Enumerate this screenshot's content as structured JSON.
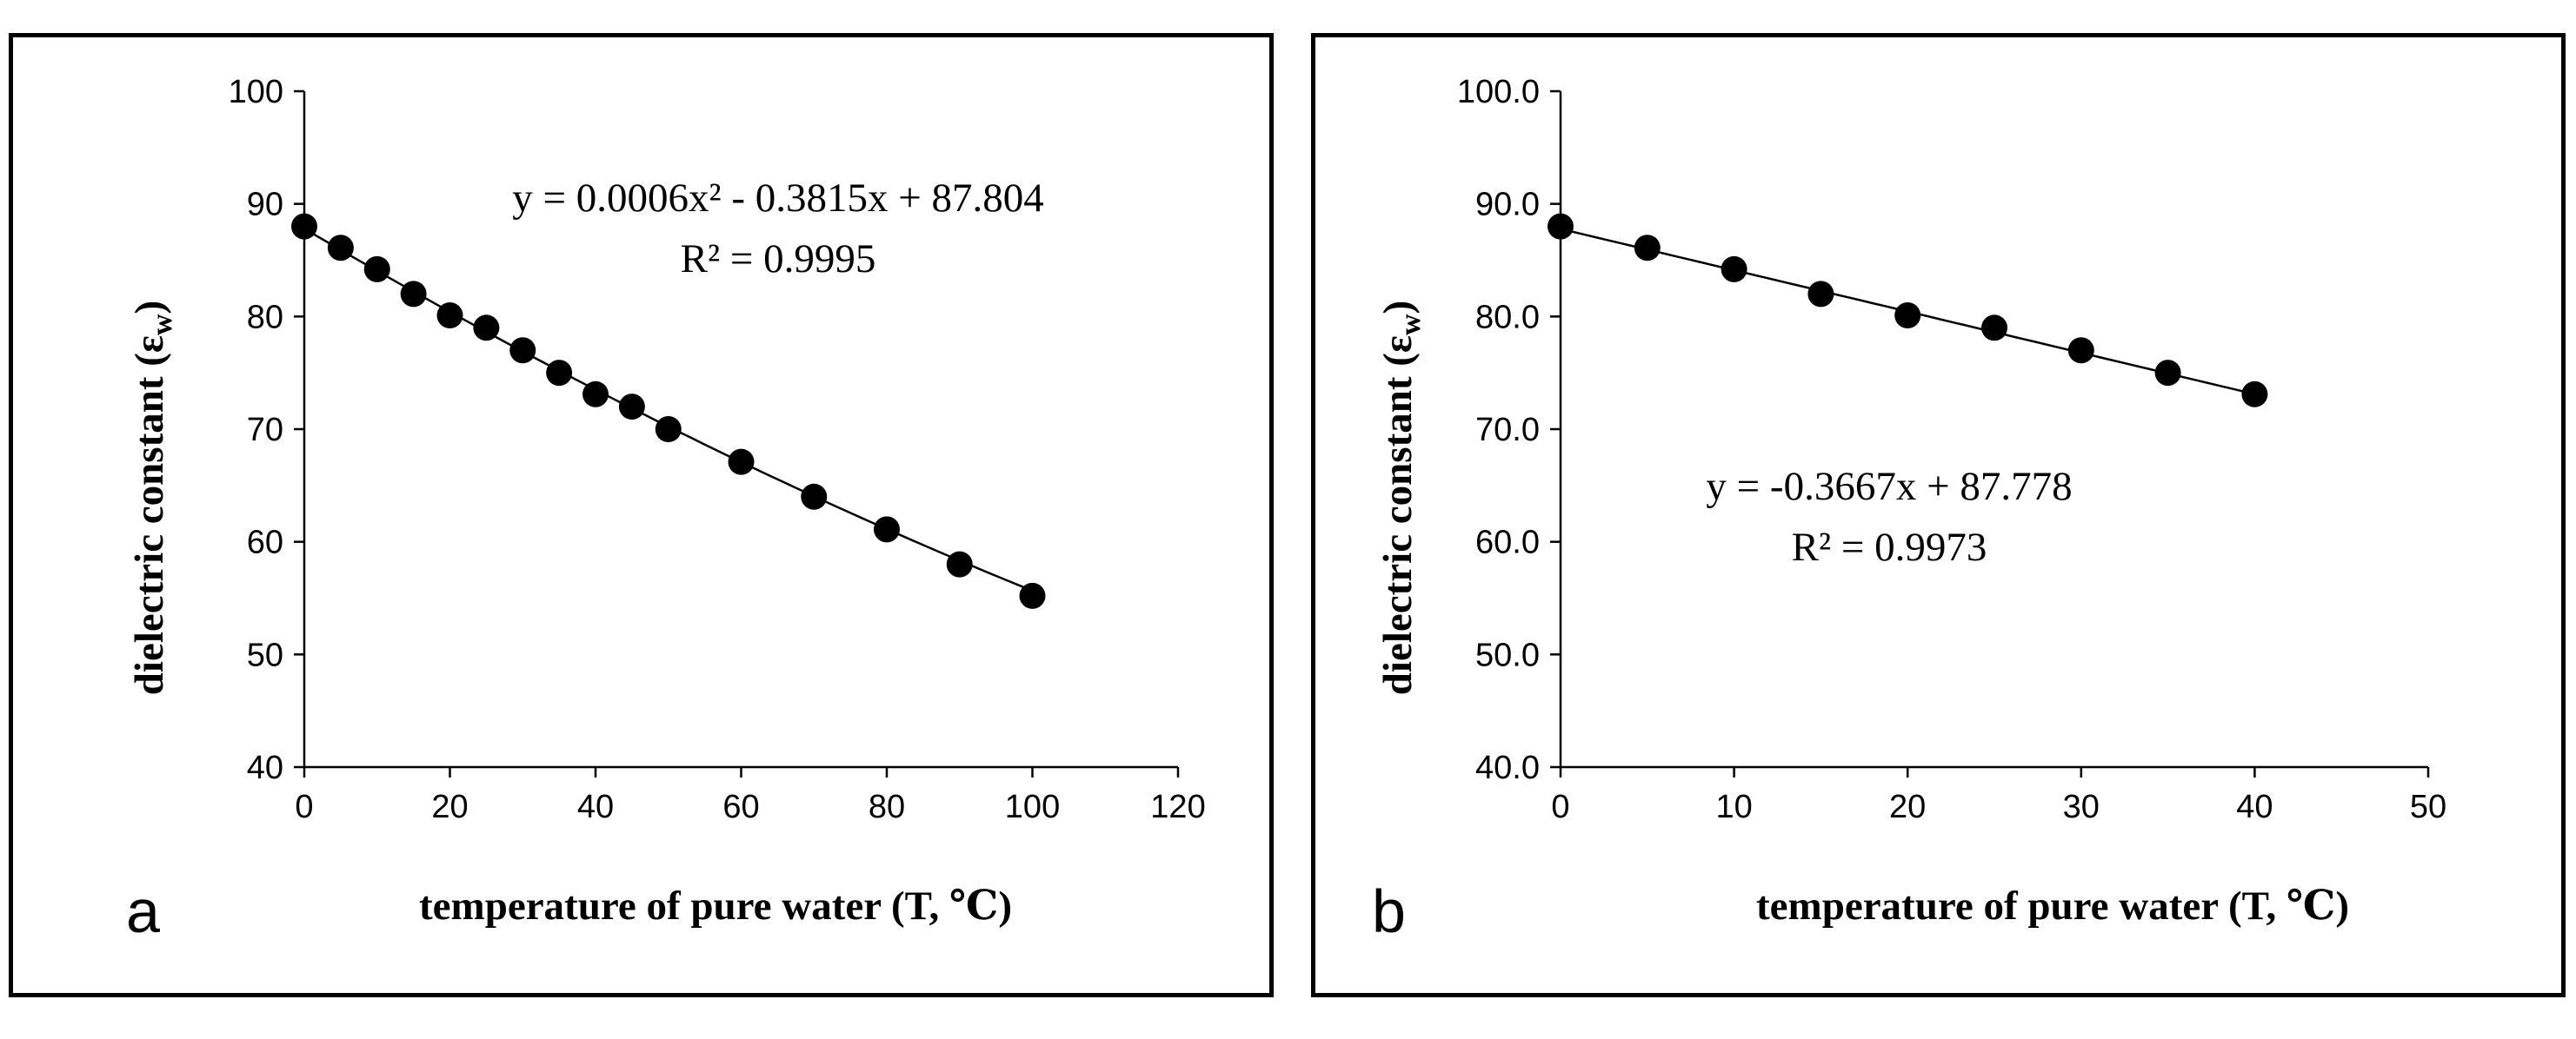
{
  "chart_data": [
    {
      "type": "scatter",
      "panel_label": "a",
      "xlabel": "temperature of pure water (T, ℃)",
      "ylabel_main": "dielectric constant (ε",
      "ylabel_sub": "w",
      "ylabel_close": ")",
      "xlim": [
        0,
        120
      ],
      "ylim": [
        40,
        100
      ],
      "xticks": [
        0,
        20,
        40,
        60,
        80,
        100,
        120
      ],
      "yticks": [
        40,
        50,
        60,
        70,
        80,
        90,
        100
      ],
      "xtick_labels": [
        "0",
        "20",
        "40",
        "60",
        "80",
        "100",
        "120"
      ],
      "ytick_labels": [
        "40",
        "50",
        "60",
        "70",
        "80",
        "90",
        "100"
      ],
      "series": [
        {
          "name": "pure water",
          "x": [
            0,
            5,
            10,
            15,
            20,
            25,
            30,
            35,
            40,
            45,
            50,
            60,
            70,
            80,
            90,
            100
          ],
          "y": [
            88.0,
            86.1,
            84.2,
            82.0,
            80.1,
            79.0,
            77.0,
            75.0,
            73.1,
            72.0,
            70.0,
            67.1,
            64.0,
            61.1,
            58.0,
            55.2
          ]
        }
      ],
      "trendline": {
        "kind": "polynomial",
        "a": 0.0006,
        "b": -0.3815,
        "c": 87.804,
        "x_range": [
          0,
          100
        ]
      },
      "equation_text": "y = 0.0006x² - 0.3815x + 87.804",
      "r2_text": "R² = 0.9995"
    },
    {
      "type": "scatter",
      "panel_label": "b",
      "xlabel": "temperature of pure water (T, ℃)",
      "ylabel_main": "dielectric constant (ε",
      "ylabel_sub": "w",
      "ylabel_close": ")",
      "xlim": [
        0,
        50
      ],
      "ylim": [
        40,
        100
      ],
      "xticks": [
        0,
        10,
        20,
        30,
        40,
        50
      ],
      "yticks": [
        40,
        50,
        60,
        70,
        80,
        90,
        100
      ],
      "xtick_labels": [
        "0",
        "10",
        "20",
        "30",
        "40",
        "50"
      ],
      "ytick_labels": [
        "40.0",
        "50.0",
        "60.0",
        "70.0",
        "80.0",
        "90.0",
        "100.0"
      ],
      "series": [
        {
          "name": "pure water",
          "x": [
            0,
            5,
            10,
            15,
            20,
            25,
            30,
            35,
            40
          ],
          "y": [
            88.0,
            86.1,
            84.2,
            82.0,
            80.1,
            79.0,
            77.0,
            75.0,
            73.1
          ]
        }
      ],
      "trendline": {
        "kind": "linear",
        "a": 0,
        "b": -0.3667,
        "c": 87.778,
        "x_range": [
          0,
          40
        ]
      },
      "equation_text": "y = -0.3667x + 87.778",
      "r2_text": "R² = 0.9973"
    }
  ]
}
